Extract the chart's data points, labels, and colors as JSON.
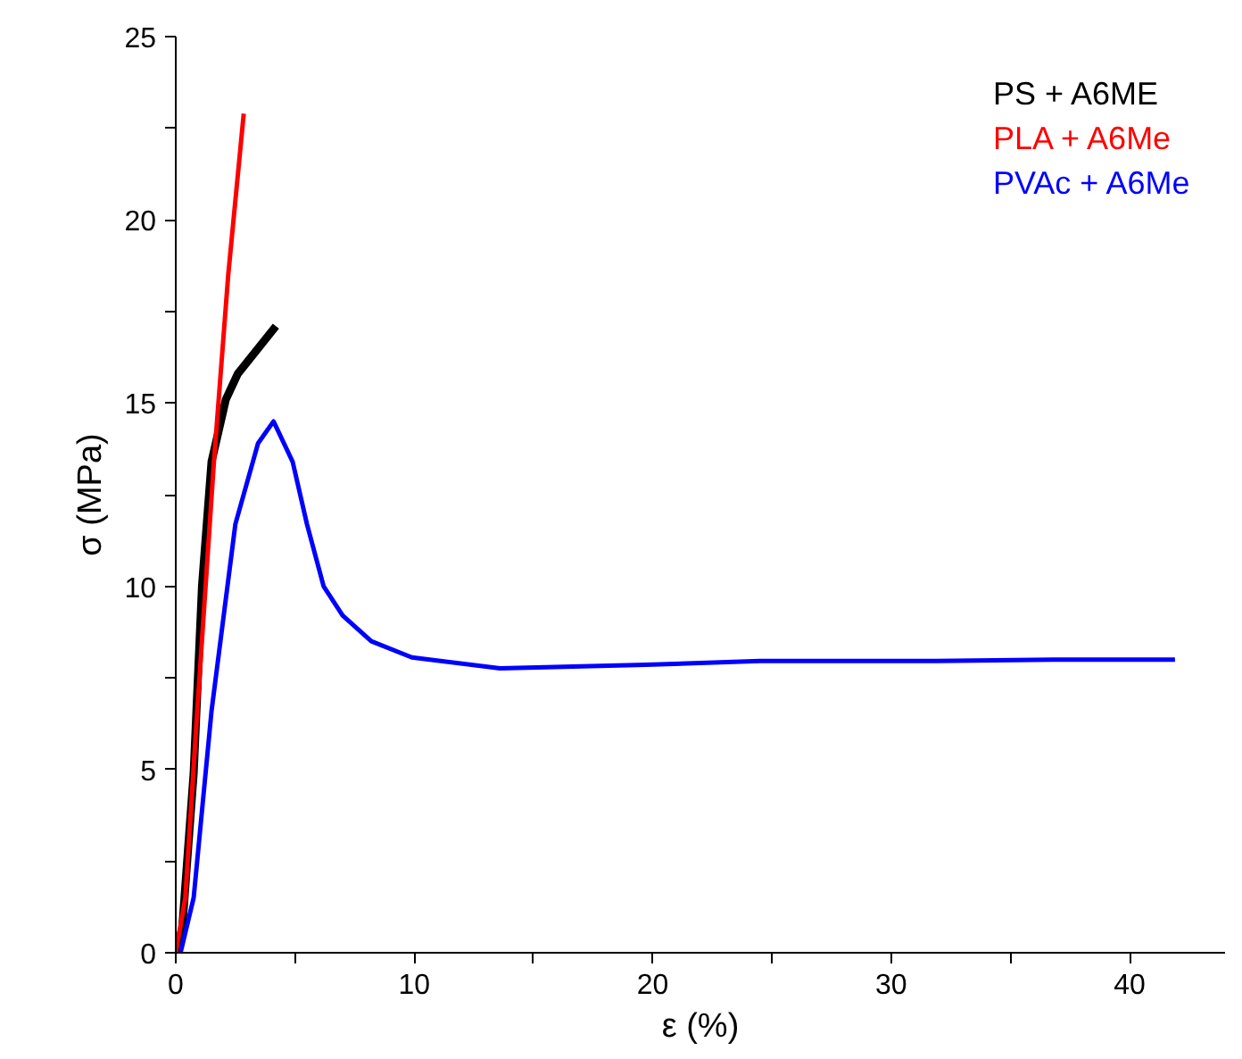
{
  "chart_data": {
    "type": "line",
    "xlabel": "ε (%)",
    "ylabel": "σ (MPa)",
    "xlim": [
      0,
      44
    ],
    "ylim": [
      0,
      25
    ],
    "xticks": [
      0,
      {
        "value": 5,
        "label": null
      },
      10,
      {
        "value": 15,
        "label": null
      },
      20,
      {
        "value": 25,
        "label": null
      },
      30,
      {
        "value": 35,
        "label": null
      },
      40
    ],
    "yticks": [
      0,
      {
        "value": 2.5,
        "label": null
      },
      5,
      {
        "value": 7.5,
        "label": null
      },
      10,
      {
        "value": 12.5,
        "label": null
      },
      15,
      {
        "value": 17.5,
        "label": null
      },
      20,
      {
        "value": 22.5,
        "label": null
      },
      25
    ],
    "legend": "top right",
    "grid": false,
    "line_style": "solid",
    "series": [
      {
        "name": "PS + A6ME",
        "color": "#000000",
        "x": [
          0,
          0.27,
          0.75,
          1.1,
          1.5,
          2.1,
          2.6,
          4.2
        ],
        "values": [
          0,
          0.66,
          4.9,
          10,
          13.4,
          15.1,
          15.8,
          17.1
        ]
      },
      {
        "name": "PLA + A6Me",
        "color": "#ff0000",
        "x": [
          0,
          0.4,
          0.9,
          1.6,
          2.2,
          2.85
        ],
        "values": [
          0,
          1.5,
          6.6,
          13.4,
          18.5,
          22.9
        ]
      },
      {
        "name": "PVAc + A6Me",
        "color": "#0000ff",
        "x": [
          0.2,
          0.75,
          1.5,
          2.5,
          3.45,
          4.1,
          4.9,
          5.5,
          6.2,
          7.0,
          8.2,
          9.9,
          13.6,
          19.7,
          24.5,
          31.9,
          36.8,
          41.9
        ],
        "values": [
          0,
          1.5,
          6.6,
          11.7,
          13.9,
          14.5,
          13.4,
          11.7,
          10,
          9.2,
          8.5,
          8.06,
          7.76,
          7.86,
          7.96,
          7.96,
          8.0,
          8.0
        ]
      }
    ]
  }
}
